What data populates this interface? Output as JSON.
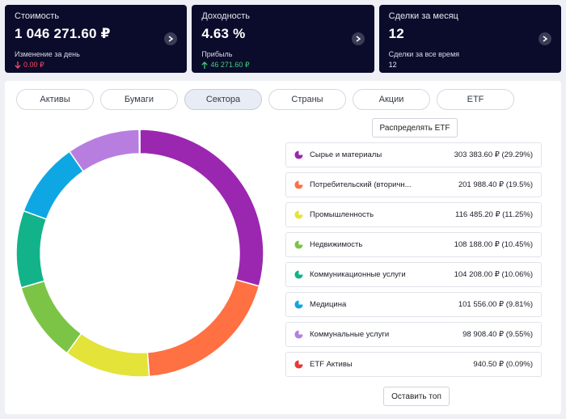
{
  "cards": [
    {
      "title": "Стоимость",
      "value": "1 046 271.60 ₽",
      "sub_label": "Изменение за день",
      "sub_value": "0.00 ₽",
      "sub_icon": "arrow-down-icon",
      "sub_color": "#ff4d61"
    },
    {
      "title": "Доходность",
      "value": "4.63 %",
      "sub_label": "Прибыль",
      "sub_value": "46 271.60 ₽",
      "sub_icon": "arrow-up-icon",
      "sub_color": "#3fd17a"
    },
    {
      "title": "Сделки за месяц",
      "value": "12",
      "sub_label": "Сделки за все время",
      "sub_value": "12",
      "sub_icon": "",
      "sub_color": "#e6e7f0"
    }
  ],
  "tabs": [
    "Активы",
    "Бумаги",
    "Сектора",
    "Страны",
    "Акции",
    "ETF"
  ],
  "active_tab": "Сектора",
  "distribute_label": "Распределять ETF",
  "keep_top_label": "Оставить топ",
  "chart_data": {
    "type": "pie",
    "style": "donut",
    "categories": [
      "Сырье и материалы",
      "Потребительский (вторичн...",
      "Промышленность",
      "Недвижимость",
      "Коммуникационные услуги",
      "Медицина",
      "Коммунальные услуги",
      "ETF Активы"
    ],
    "values": [
      29.29,
      19.5,
      11.25,
      10.45,
      10.06,
      9.81,
      9.55,
      0.09
    ],
    "amounts": [
      "303 383.60 ₽ (29.29%)",
      "201 988.40 ₽ (19.5%)",
      "116 485.20 ₽ (11.25%)",
      "108 188.00 ₽ (10.45%)",
      "104 208.00 ₽ (10.06%)",
      "101 556.00 ₽ (9.81%)",
      "98 908.40 ₽ (9.55%)",
      "940.50 ₽ (0.09%)"
    ],
    "colors": [
      "#9b27b0",
      "#ff7043",
      "#e3e33a",
      "#7cc446",
      "#12b38a",
      "#0fa7e3",
      "#b77ee0",
      "#e53935"
    ]
  }
}
